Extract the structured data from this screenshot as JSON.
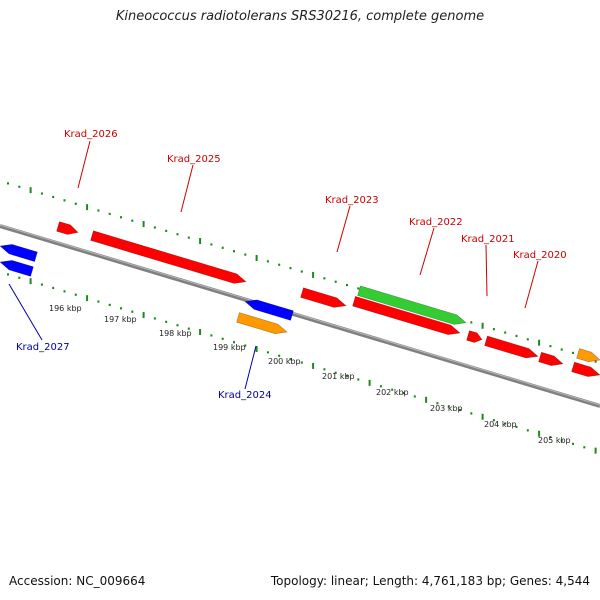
{
  "title": "Kineococcus radiotolerans SRS30216, complete genome",
  "footer": {
    "accession": "Accession: NC_009664",
    "topology": "Topology: linear; Length: 4,761,183 bp; Genes: 4,544"
  },
  "colors": {
    "forward_gene": "#ff0000",
    "reverse_gene": "#0000ff",
    "rna_gene": "#ff9900",
    "other_feature": "#33cc33",
    "backbone": "#808080",
    "ticks": "#1a8a1a",
    "forward_label": "#cc0000",
    "reverse_label": "#0000aa"
  },
  "kbp_labels": [
    "196 kbp",
    "197 kbp",
    "198 kbp",
    "199 kbp",
    "200 kbp",
    "201 kbp",
    "202 kbp",
    "203 kbp",
    "204 kbp",
    "205 kbp"
  ],
  "gene_labels": [
    {
      "name": "Krad_2026",
      "strand": "forward"
    },
    {
      "name": "Krad_2025",
      "strand": "forward"
    },
    {
      "name": "Krad_2023",
      "strand": "forward"
    },
    {
      "name": "Krad_2022",
      "strand": "forward"
    },
    {
      "name": "Krad_2021",
      "strand": "forward"
    },
    {
      "name": "Krad_2020",
      "strand": "forward"
    },
    {
      "name": "Krad_2027",
      "strand": "reverse"
    },
    {
      "name": "Krad_2024",
      "strand": "reverse"
    }
  ]
}
